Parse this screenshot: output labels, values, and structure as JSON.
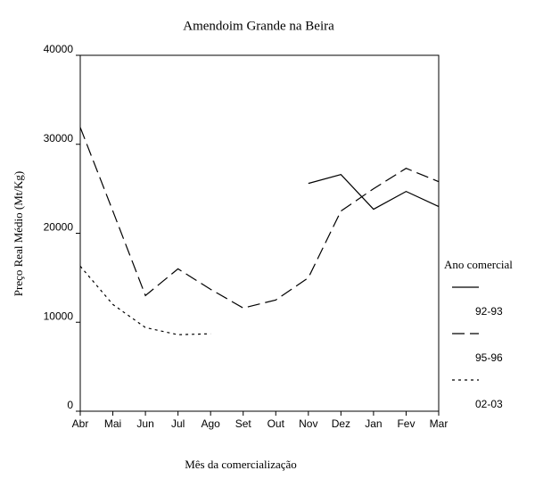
{
  "chart_data": {
    "type": "line",
    "title": "Amendoim Grande na Beira",
    "y_label": "Preço Real Médio (Mt/Kg)",
    "x_label": "Mês da comercialização",
    "legend_title": "Ano comercial",
    "categories": [
      "Abr",
      "Mai",
      "Jun",
      "Jul",
      "Ago",
      "Set",
      "Out",
      "Nov",
      "Dez",
      "Jan",
      "Fev",
      "Mar"
    ],
    "series": [
      {
        "name": "92-93",
        "color": "#000000",
        "style": "solid",
        "values": [
          null,
          null,
          null,
          null,
          null,
          null,
          null,
          25600,
          26600,
          22700,
          24700,
          23000
        ]
      },
      {
        "name": "95-96",
        "color": "#000000",
        "style": "dashed",
        "values": [
          31900,
          22500,
          13000,
          16000,
          13700,
          11600,
          12500,
          15000,
          22500,
          25000,
          27300,
          25800
        ]
      },
      {
        "name": "02-03",
        "color": "#000000",
        "style": "dotted",
        "values": [
          16300,
          12000,
          9400,
          8600,
          8700,
          null,
          null,
          null,
          null,
          null,
          null,
          null
        ]
      }
    ],
    "ylim": [
      0,
      40000
    ],
    "yticks": [
      0,
      10000,
      20000,
      30000,
      40000
    ],
    "grid": false,
    "legend": "right"
  }
}
